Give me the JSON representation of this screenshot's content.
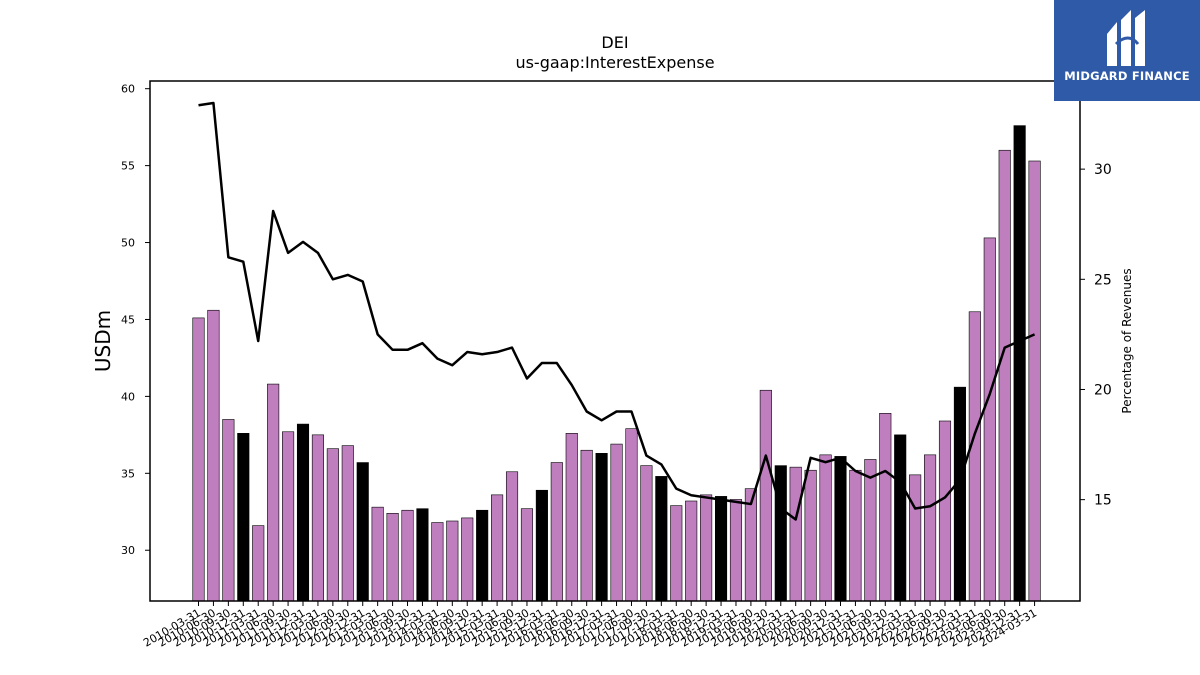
{
  "logo": {
    "text": "MIDGARD FINANCE",
    "icon": "midgard-logo-icon",
    "background": "#2f5aa8"
  },
  "chart_data": {
    "type": "bar",
    "title": "DEI",
    "subtitle": "us-gaap:InterestExpense",
    "ylabel": "USDm",
    "y2label": "Percentage of Revenues",
    "ylim": [
      26.7,
      60.5
    ],
    "y2lim": [
      10.4,
      34.0
    ],
    "yticks": [
      30,
      35,
      40,
      45,
      50,
      55,
      60
    ],
    "y2ticks": [
      15,
      20,
      25,
      30
    ],
    "colors": {
      "bar": "#bf7fbf",
      "bar_highlight": "#000000",
      "line": "#000000"
    },
    "categories": [
      "2010-03-31",
      "2010-06-30",
      "2010-09-30",
      "2010-12-31",
      "2011-03-31",
      "2011-06-30",
      "2011-09-30",
      "2011-12-31",
      "2012-03-31",
      "2012-06-30",
      "2012-09-30",
      "2012-12-31",
      "2013-03-31",
      "2013-06-30",
      "2013-09-30",
      "2013-12-31",
      "2014-03-31",
      "2014-06-30",
      "2014-09-30",
      "2014-12-31",
      "2015-03-31",
      "2015-06-30",
      "2015-09-30",
      "2015-12-31",
      "2016-03-31",
      "2016-06-30",
      "2016-09-30",
      "2016-12-31",
      "2017-03-31",
      "2017-06-30",
      "2017-09-30",
      "2017-12-31",
      "2018-03-31",
      "2018-06-30",
      "2018-09-30",
      "2018-12-31",
      "2019-03-31",
      "2019-06-30",
      "2019-09-30",
      "2019-12-31",
      "2020-03-31",
      "2020-06-30",
      "2020-09-30",
      "2020-12-31",
      "2021-03-31",
      "2021-06-30",
      "2021-09-30",
      "2021-12-31",
      "2022-03-31",
      "2022-06-30",
      "2022-09-30",
      "2022-12-31",
      "2023-03-31",
      "2023-06-30",
      "2023-09-30",
      "2023-12-31",
      "2024-03-31"
    ],
    "series": [
      {
        "type": "bar",
        "values": [
          45.1,
          45.6,
          38.5,
          37.6,
          31.6,
          40.8,
          37.7,
          38.2,
          37.5,
          36.6,
          36.8,
          35.7,
          32.8,
          32.4,
          32.6,
          32.7,
          31.8,
          31.9,
          32.1,
          32.6,
          33.6,
          35.1,
          32.7,
          33.9,
          35.7,
          37.6,
          36.5,
          36.3,
          36.9,
          37.9,
          35.5,
          34.8,
          32.9,
          33.2,
          33.6,
          33.5,
          33.3,
          34.0,
          40.4,
          35.5,
          35.4,
          35.2,
          36.2,
          36.1,
          35.2,
          35.9,
          38.9,
          37.5,
          34.9,
          36.2,
          38.4,
          40.6,
          45.5,
          50.3,
          56.0,
          57.6,
          55.3
        ],
        "highlight": [
          false,
          false,
          false,
          true,
          false,
          false,
          false,
          true,
          false,
          false,
          false,
          true,
          false,
          false,
          false,
          true,
          false,
          false,
          false,
          true,
          false,
          false,
          false,
          true,
          false,
          false,
          false,
          true,
          false,
          false,
          false,
          true,
          false,
          false,
          false,
          true,
          false,
          false,
          false,
          true,
          false,
          false,
          false,
          true,
          false,
          false,
          false,
          true,
          false,
          false,
          false,
          true,
          false,
          false,
          false,
          true,
          false
        ]
      },
      {
        "type": "line",
        "axis": "right",
        "values": [
          32.9,
          33.0,
          26.0,
          25.8,
          22.2,
          28.1,
          26.2,
          26.7,
          26.2,
          25.0,
          25.2,
          24.9,
          22.5,
          21.8,
          21.8,
          22.1,
          21.4,
          21.1,
          21.7,
          21.6,
          21.7,
          21.9,
          20.5,
          21.2,
          21.2,
          20.2,
          19.0,
          18.6,
          19.0,
          19.0,
          17.0,
          16.6,
          15.5,
          15.2,
          15.1,
          15.0,
          14.9,
          14.8,
          17.0,
          14.6,
          14.1,
          16.9,
          16.7,
          16.9,
          16.3,
          16.0,
          16.3,
          15.8,
          14.6,
          14.7,
          15.1,
          15.9,
          18.0,
          19.8,
          21.9,
          22.2,
          22.5
        ]
      }
    ]
  }
}
